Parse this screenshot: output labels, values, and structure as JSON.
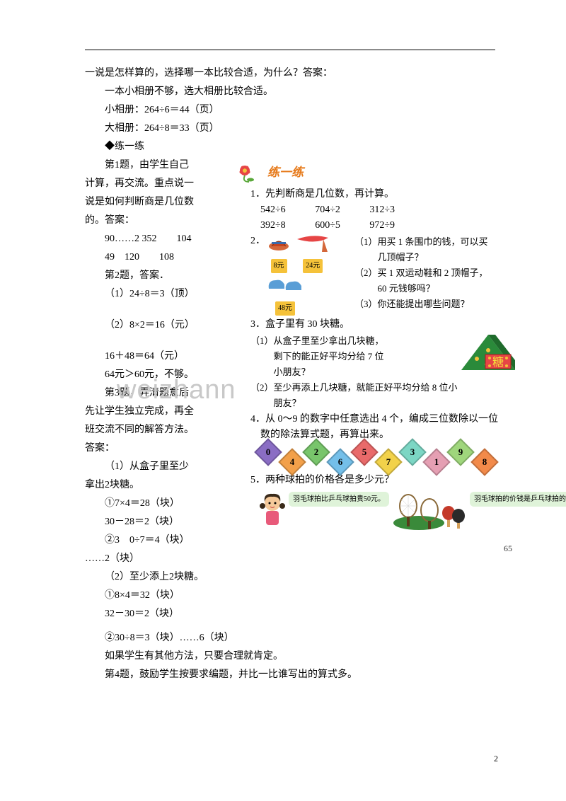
{
  "intro": {
    "l1": "一说是怎样算的，选择哪一本比较合适，为什么？答案：",
    "l2": "一本小相册不够，选大相册比较合适。",
    "l3": "小相册：264÷6＝44（页）",
    "l4": "大相册：264÷8＝33（页）",
    "l5": "◆练一练"
  },
  "left": {
    "p1a": "第1题，由学生自己",
    "p1b": "计算，再交流。重点说一",
    "p1c": "说是如何判断商是几位数",
    "p1d": "的。答案：",
    "ans1a": "90……2 352　　104",
    "ans1b": "49　120　　108",
    "p2a": "第2题，答案．",
    "a2_1": "（1）24÷8＝3（顶）",
    "a2_2": "（2）8×2＝16（元）",
    "a2_3": "16＋48＝64（元）",
    "a2_4": "64元＞60元，不够。",
    "p3a": "第3题，弄清题意后，",
    "p3b": "先让学生独立完成，再全",
    "p3c": "班交流不同的解答方法。",
    "p3d": "答案：",
    "a3_1a": "（1）从盒子里至少",
    "a3_1b": "拿出2块糖。",
    "a3_c1": "①7×4＝28（块）",
    "a3_c2": "30－28＝2（块）",
    "a3_c3": "②3　0÷7＝4（块）",
    "a3_c4": "……2（块）",
    "a3_2": "（2）至少添上2块糖。",
    "a3_d1": "①8×4＝32（块）",
    "a3_d2": "32－30＝2（块）"
  },
  "bottom": {
    "b1": "②30÷8＝3（块）……6（块）",
    "b2": "如果学生有其他方法，只要合理就肯定。",
    "b3": "第4题，鼓励学生按要求编题，并比一比谁写出的算式多。"
  },
  "tb": {
    "title": "练一练",
    "q1": "1．先判断商是几位数，再计算。",
    "q1nums": [
      "542÷6",
      "704÷2",
      "312÷3",
      "392÷8",
      "600÷5",
      "972÷9"
    ],
    "q2": {
      "num": "2．",
      "prices": {
        "hat": "8元",
        "scarf": "24元",
        "shoes": "48元"
      },
      "t1": "（1）用买 1 条围巾的钱，可以买",
      "t1b": "几顶帽子？",
      "t2": "（2）买 1 双运动鞋和 2 顶帽子，",
      "t2b": "60 元钱够吗？",
      "t3": "（3）你还能提出哪些问题？"
    },
    "q3": {
      "head": "3．盒子里有 30 块糖。",
      "t1": "（1）从盒子里至少拿出几块糖，",
      "t1b": "剩下的能正好平均分给 7 位",
      "t1c": "小朋友？",
      "t2": "（2）至少再添上几块糖，就能正好平均分给 8 位小",
      "t2b": "朋友？",
      "candy_label": "糖"
    },
    "q4": {
      "head": "4．从 0～9 的数字中任意选出 4 个，编成三位数除以一位",
      "head2": "数的除法算式题，再算出来。",
      "cards": [
        "0",
        "4",
        "2",
        "6",
        "5",
        "7",
        "3",
        "1",
        "9",
        "8"
      ],
      "card_colors": [
        "#8a6dc4",
        "#f2a04a",
        "#78c56b",
        "#74bfe9",
        "#e96a6a",
        "#f2d24a",
        "#7cd6c4",
        "#e59fb3",
        "#9fd67c",
        "#f28a4a"
      ]
    },
    "q5": {
      "head": "5．两种球拍的价格各是多少元？",
      "bubble1": "羽毛球拍比乒乓球拍贵50元。",
      "bubble2": "羽毛球拍的价钱是乒乓球拍的3倍。"
    },
    "page": "65"
  },
  "watermark": "weizhannet.com",
  "footer": "2"
}
